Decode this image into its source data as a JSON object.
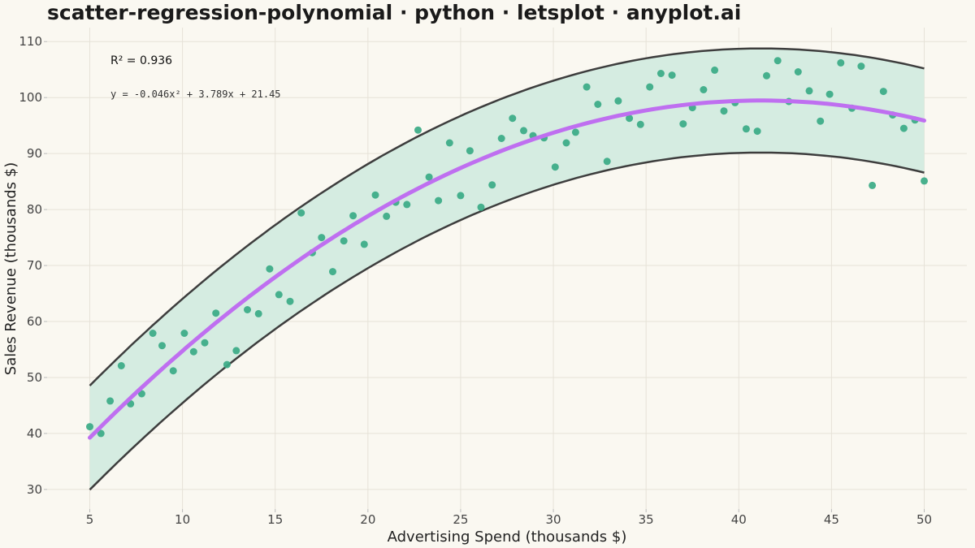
{
  "chart_data": {
    "type": "scatter",
    "title": "scatter-regression-polynomial · python · letsplot · anyplot.ai",
    "xlabel": "Advertising Spend (thousands $)",
    "ylabel": "Sales Revenue (thousands $)",
    "xlim": [
      2.7,
      52.3
    ],
    "ylim": [
      26.5,
      112.5
    ],
    "xticks": [
      5,
      10,
      15,
      20,
      25,
      30,
      35,
      40,
      45,
      50
    ],
    "yticks": [
      30,
      40,
      50,
      60,
      70,
      80,
      90,
      100,
      110
    ],
    "grid": true,
    "annotations": {
      "r2": "R² = 0.936",
      "equation": "y = -0.046x² + 3.789x + 21.45"
    },
    "fit": {
      "a": -0.046,
      "b": 3.789,
      "c": 21.45,
      "band_halfwidth": 9.3
    },
    "colors": {
      "points": "#3aaa86",
      "fit_line": "#bf6ff0",
      "band_fill": "#d5ece1",
      "band_edge": "#3d3d3d",
      "background": "#faf8f1",
      "grid": "#e6e2d8"
    },
    "points": [
      [
        5.0,
        41.2
      ],
      [
        5.6,
        40.0
      ],
      [
        6.1,
        45.8
      ],
      [
        6.7,
        52.1
      ],
      [
        7.2,
        45.3
      ],
      [
        7.8,
        47.1
      ],
      [
        8.4,
        57.9
      ],
      [
        8.9,
        55.7
      ],
      [
        9.5,
        51.2
      ],
      [
        10.1,
        57.9
      ],
      [
        10.6,
        54.6
      ],
      [
        11.2,
        56.2
      ],
      [
        11.8,
        61.5
      ],
      [
        12.4,
        52.3
      ],
      [
        12.9,
        54.8
      ],
      [
        13.5,
        62.1
      ],
      [
        14.1,
        61.4
      ],
      [
        14.7,
        69.4
      ],
      [
        15.2,
        64.8
      ],
      [
        15.8,
        63.6
      ],
      [
        16.4,
        79.4
      ],
      [
        17.0,
        72.3
      ],
      [
        17.5,
        75.0
      ],
      [
        18.1,
        68.9
      ],
      [
        18.7,
        74.4
      ],
      [
        19.2,
        78.9
      ],
      [
        19.8,
        73.8
      ],
      [
        20.4,
        82.6
      ],
      [
        21.0,
        78.8
      ],
      [
        21.5,
        81.3
      ],
      [
        22.1,
        80.9
      ],
      [
        22.7,
        94.2
      ],
      [
        23.3,
        85.8
      ],
      [
        23.8,
        81.6
      ],
      [
        24.4,
        91.9
      ],
      [
        25.0,
        82.5
      ],
      [
        25.5,
        90.5
      ],
      [
        26.1,
        80.4
      ],
      [
        26.7,
        84.4
      ],
      [
        27.2,
        92.7
      ],
      [
        27.8,
        96.3
      ],
      [
        28.4,
        94.1
      ],
      [
        28.9,
        93.2
      ],
      [
        29.5,
        92.8
      ],
      [
        30.1,
        87.6
      ],
      [
        30.7,
        91.9
      ],
      [
        31.2,
        93.8
      ],
      [
        31.8,
        101.9
      ],
      [
        32.4,
        98.8
      ],
      [
        32.9,
        88.6
      ],
      [
        33.5,
        99.4
      ],
      [
        34.1,
        96.3
      ],
      [
        34.7,
        95.2
      ],
      [
        35.2,
        101.9
      ],
      [
        35.8,
        104.3
      ],
      [
        36.4,
        104.0
      ],
      [
        37.0,
        95.3
      ],
      [
        37.5,
        98.2
      ],
      [
        38.1,
        101.4
      ],
      [
        38.7,
        104.9
      ],
      [
        39.2,
        97.6
      ],
      [
        39.8,
        99.1
      ],
      [
        40.4,
        94.4
      ],
      [
        41.0,
        94.0
      ],
      [
        41.5,
        103.9
      ],
      [
        42.1,
        106.6
      ],
      [
        42.7,
        99.3
      ],
      [
        43.2,
        104.6
      ],
      [
        43.8,
        101.2
      ],
      [
        44.4,
        95.8
      ],
      [
        44.9,
        100.6
      ],
      [
        45.5,
        106.2
      ],
      [
        46.1,
        98.1
      ],
      [
        46.6,
        105.6
      ],
      [
        47.2,
        84.3
      ],
      [
        47.8,
        101.1
      ],
      [
        48.3,
        96.9
      ],
      [
        48.9,
        94.5
      ],
      [
        49.5,
        96.0
      ],
      [
        50.0,
        85.1
      ]
    ]
  }
}
